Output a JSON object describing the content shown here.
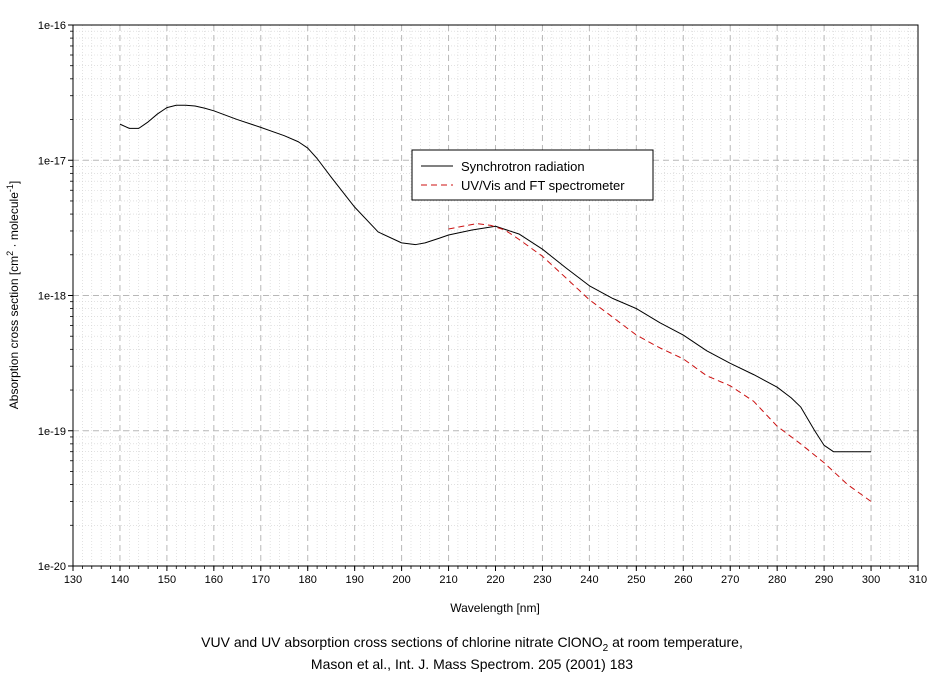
{
  "chart_data": {
    "type": "line",
    "xlabel": "Wavelength [nm]",
    "ylabel": {
      "pre": "Absorption cross section [cm",
      "sup1": "2",
      "mid": " · molecule",
      "sup2": "-1",
      "post": "]"
    },
    "x_scale": "linear",
    "y_scale": "log",
    "xlim": [
      130,
      310
    ],
    "ylim": [
      1e-20,
      1e-16
    ],
    "x_ticks": [
      130,
      140,
      150,
      160,
      170,
      180,
      190,
      200,
      210,
      220,
      230,
      240,
      250,
      260,
      270,
      280,
      290,
      300,
      310
    ],
    "y_ticks": [
      {
        "value": 1e-20,
        "label": "1e-20"
      },
      {
        "value": 1e-19,
        "label": "1e-19"
      },
      {
        "value": 1e-18,
        "label": "1e-18"
      },
      {
        "value": 1e-17,
        "label": "1e-17"
      },
      {
        "value": 1e-16,
        "label": "1e-16"
      }
    ],
    "grid": true,
    "legend_position": "upper-center",
    "series": [
      {
        "name": "Synchrotron radiation",
        "color": "#000000",
        "dash": "solid",
        "x": [
          140,
          142,
          144,
          146,
          148,
          150,
          152,
          154,
          156,
          158,
          160,
          165,
          170,
          175,
          178,
          180,
          182,
          185,
          190,
          195,
          200,
          203,
          205,
          208,
          210,
          215,
          220,
          225,
          230,
          235,
          240,
          245,
          250,
          255,
          260,
          265,
          270,
          275,
          280,
          283,
          285,
          288,
          290,
          292,
          295,
          300
        ],
        "y": [
          1.85e-17,
          1.72e-17,
          1.72e-17,
          1.92e-17,
          2.2e-17,
          2.45e-17,
          2.55e-17,
          2.55e-17,
          2.52e-17,
          2.43e-17,
          2.32e-17,
          2e-17,
          1.75e-17,
          1.52e-17,
          1.37e-17,
          1.23e-17,
          1.03e-17,
          7.5e-18,
          4.5e-18,
          2.95e-18,
          2.45e-18,
          2.38e-18,
          2.45e-18,
          2.65e-18,
          2.8e-18,
          3.05e-18,
          3.25e-18,
          2.85e-18,
          2.2e-18,
          1.6e-18,
          1.18e-18,
          9.5e-19,
          8e-19,
          6.3e-19,
          5.1e-19,
          3.9e-19,
          3.15e-19,
          2.6e-19,
          2.1e-19,
          1.75e-19,
          1.5e-19,
          1e-19,
          7.8e-20,
          7e-20,
          7e-20,
          7e-20
        ]
      },
      {
        "name": "UV/Vis and FT spectrometer",
        "color": "#cc1111",
        "dash": "dashed",
        "x": [
          210,
          213,
          216,
          219,
          222,
          225,
          230,
          235,
          240,
          245,
          250,
          255,
          260,
          265,
          270,
          275,
          280,
          285,
          290,
          295,
          300
        ],
        "y": [
          3.1e-18,
          3.25e-18,
          3.4e-18,
          3.3e-18,
          3.05e-18,
          2.6e-18,
          1.95e-18,
          1.35e-18,
          9.3e-19,
          6.9e-19,
          5.1e-19,
          4.1e-19,
          3.4e-19,
          2.55e-19,
          2.15e-19,
          1.65e-19,
          1.08e-19,
          8e-20,
          5.8e-20,
          4e-20,
          3e-20
        ]
      }
    ]
  },
  "caption": {
    "line1_pre": "VUV and UV absorption cross sections of chlorine nitrate ClONO",
    "line1_sub": "2",
    "line1_post": " at room temperature,",
    "line2": "Mason et al., Int. J. Mass Spectrom. 205 (2001) 183"
  }
}
